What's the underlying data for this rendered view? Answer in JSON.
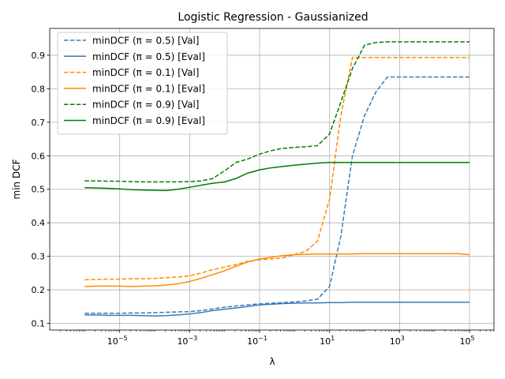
{
  "chart_data": {
    "type": "line",
    "title": "Logistic Regression - Gaussianized",
    "xlabel": "λ",
    "ylabel": "min DCF",
    "x_scale": "log",
    "xlim": [
      1e-07,
      500000.0
    ],
    "ylim": [
      0.08,
      0.98
    ],
    "grid": true,
    "legend_position": "top-left",
    "x_ticks": [
      {
        "value": 1e-05,
        "base": "10",
        "exp": "−5"
      },
      {
        "value": 0.001,
        "base": "10",
        "exp": "−3"
      },
      {
        "value": 0.1,
        "base": "10",
        "exp": "−1"
      },
      {
        "value": 10,
        "base": "10",
        "exp": "1"
      },
      {
        "value": 1000,
        "base": "10",
        "exp": "3"
      },
      {
        "value": 100000,
        "base": "10",
        "exp": "5"
      }
    ],
    "y_ticks": [
      {
        "value": 0.1,
        "label": "0.1"
      },
      {
        "value": 0.2,
        "label": "0.2"
      },
      {
        "value": 0.3,
        "label": "0.3"
      },
      {
        "value": 0.4,
        "label": "0.4"
      },
      {
        "value": 0.5,
        "label": "0.5"
      },
      {
        "value": 0.6,
        "label": "0.6"
      },
      {
        "value": 0.7,
        "label": "0.7"
      },
      {
        "value": 0.8,
        "label": "0.8"
      },
      {
        "value": 0.9,
        "label": "0.9"
      }
    ],
    "x": [
      1e-06,
      2.1e-06,
      4.5e-06,
      1e-05,
      2.1e-05,
      4.5e-05,
      0.0001,
      0.00021,
      0.00045,
      0.001,
      0.0021,
      0.0045,
      0.01,
      0.021,
      0.045,
      0.1,
      0.21,
      0.45,
      1,
      2.1,
      4.5,
      10,
      21,
      45,
      100,
      210,
      450,
      1000,
      2100,
      4500,
      10000,
      21000,
      45000,
      100000
    ],
    "series": [
      {
        "name": "minDCF (π = 0.5) [Val]",
        "color": "#3b7bb7",
        "dash": "dashed",
        "values": [
          0.13,
          0.13,
          0.13,
          0.13,
          0.131,
          0.131,
          0.132,
          0.133,
          0.134,
          0.135,
          0.138,
          0.143,
          0.148,
          0.152,
          0.155,
          0.158,
          0.16,
          0.162,
          0.164,
          0.167,
          0.172,
          0.21,
          0.36,
          0.6,
          0.72,
          0.79,
          0.835,
          0.835,
          0.835,
          0.835,
          0.835,
          0.835,
          0.835,
          0.835
        ]
      },
      {
        "name": "minDCF (π = 0.5) [Eval]",
        "color": "#3b7bb7",
        "dash": "solid",
        "values": [
          0.125,
          0.125,
          0.124,
          0.124,
          0.124,
          0.123,
          0.122,
          0.123,
          0.125,
          0.128,
          0.132,
          0.138,
          0.142,
          0.146,
          0.15,
          0.155,
          0.157,
          0.159,
          0.16,
          0.161,
          0.161,
          0.162,
          0.162,
          0.163,
          0.163,
          0.163,
          0.163,
          0.163,
          0.163,
          0.163,
          0.163,
          0.163,
          0.163,
          0.163
        ]
      },
      {
        "name": "minDCF (π = 0.1) [Val]",
        "color": "#ff8c00",
        "dash": "dashed",
        "values": [
          0.23,
          0.231,
          0.232,
          0.232,
          0.233,
          0.233,
          0.234,
          0.236,
          0.238,
          0.242,
          0.25,
          0.26,
          0.268,
          0.275,
          0.285,
          0.29,
          0.292,
          0.295,
          0.305,
          0.315,
          0.345,
          0.47,
          0.72,
          0.893,
          0.893,
          0.893,
          0.893,
          0.893,
          0.893,
          0.893,
          0.893,
          0.893,
          0.893,
          0.893
        ]
      },
      {
        "name": "minDCF (π = 0.1) [Eval]",
        "color": "#ff8c00",
        "dash": "solid",
        "values": [
          0.21,
          0.211,
          0.211,
          0.211,
          0.21,
          0.211,
          0.212,
          0.214,
          0.218,
          0.225,
          0.234,
          0.245,
          0.257,
          0.27,
          0.283,
          0.292,
          0.297,
          0.302,
          0.305,
          0.306,
          0.307,
          0.307,
          0.307,
          0.307,
          0.308,
          0.308,
          0.308,
          0.308,
          0.308,
          0.308,
          0.308,
          0.308,
          0.308,
          0.305
        ]
      },
      {
        "name": "minDCF (π = 0.9) [Val]",
        "color": "#008000",
        "dash": "dashed",
        "values": [
          0.525,
          0.525,
          0.524,
          0.524,
          0.523,
          0.522,
          0.522,
          0.522,
          0.522,
          0.523,
          0.525,
          0.532,
          0.555,
          0.58,
          0.59,
          0.605,
          0.615,
          0.622,
          0.625,
          0.627,
          0.63,
          0.665,
          0.76,
          0.86,
          0.93,
          0.938,
          0.94,
          0.94,
          0.94,
          0.94,
          0.94,
          0.94,
          0.94,
          0.94
        ]
      },
      {
        "name": "minDCF (π = 0.9) [Eval]",
        "color": "#008000",
        "dash": "solid",
        "values": [
          0.505,
          0.504,
          0.503,
          0.501,
          0.499,
          0.498,
          0.497,
          0.496,
          0.5,
          0.506,
          0.512,
          0.518,
          0.522,
          0.532,
          0.548,
          0.558,
          0.564,
          0.568,
          0.572,
          0.575,
          0.578,
          0.58,
          0.58,
          0.58,
          0.58,
          0.58,
          0.58,
          0.58,
          0.58,
          0.58,
          0.58,
          0.58,
          0.58,
          0.58
        ]
      }
    ]
  }
}
